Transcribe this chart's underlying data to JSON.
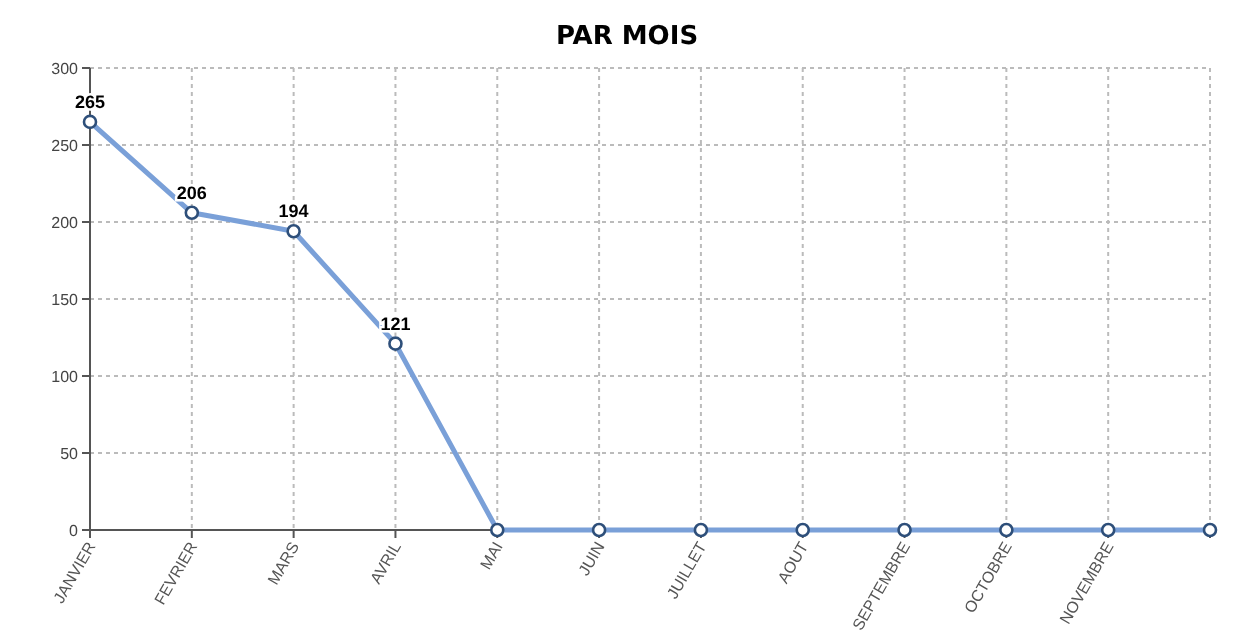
{
  "chart_data": {
    "type": "line",
    "title": "PAR MOIS",
    "categories": [
      "JANVIER",
      "FEVRIER",
      "MARS",
      "AVRIL",
      "MAI",
      "JUIN",
      "JUILLET",
      "AOUT",
      "SEPTEMBRE",
      "OCTOBRE",
      "NOVEMBRE",
      null
    ],
    "series": [
      {
        "color": "#7aa0d8",
        "values": [
          265,
          206,
          194,
          121,
          0,
          0,
          0,
          0,
          0,
          0,
          0,
          0
        ],
        "value_labels": [
          "265",
          "206",
          "194",
          "121",
          null,
          null,
          null,
          null,
          null,
          null,
          null,
          null
        ]
      }
    ],
    "ylim": [
      0,
      300
    ],
    "yticks": [
      0,
      50,
      100,
      150,
      200,
      250,
      300
    ],
    "grid": true,
    "marker": "circle",
    "line_style": "solid"
  }
}
